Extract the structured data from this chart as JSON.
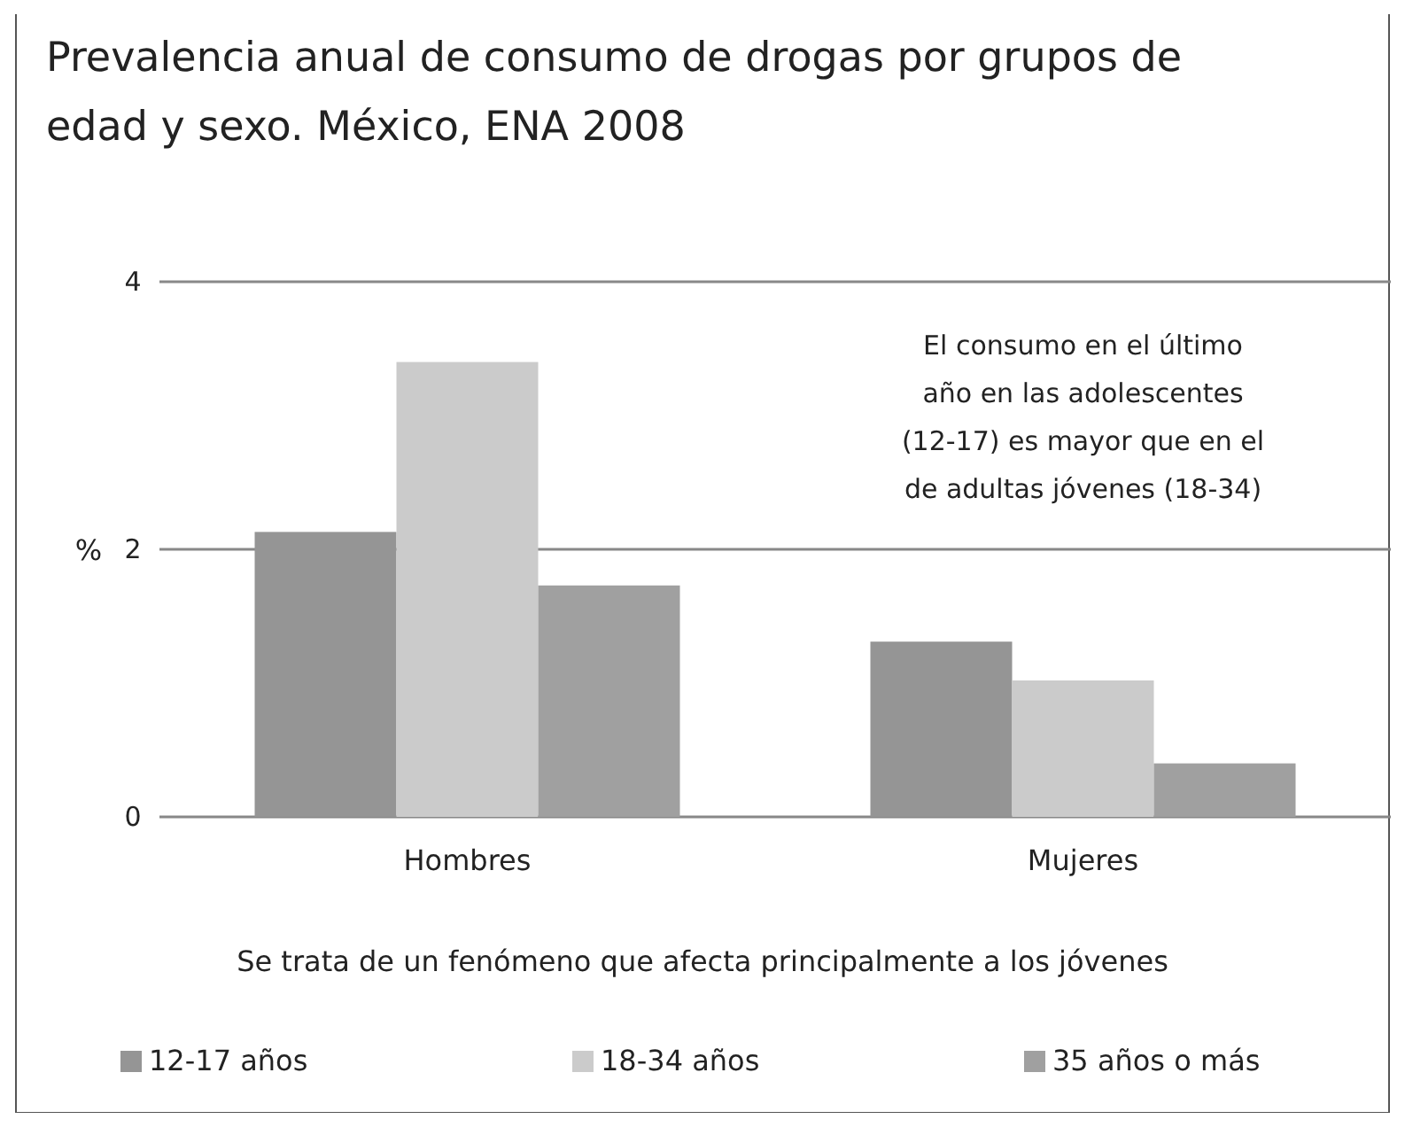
{
  "chart_data": {
    "type": "bar",
    "title": "Prevalencia anual de consumo de drogas por grupos de edad y sexo. México, ENA 2008",
    "ylabel": "%",
    "categories": [
      "Hombres",
      "Mujeres"
    ],
    "series": [
      {
        "name": "12-17 años",
        "color": "#959595",
        "values": [
          2.13,
          1.31
        ]
      },
      {
        "name": "18-34 años",
        "color": "#cbcbcb",
        "values": [
          3.4,
          1.02
        ]
      },
      {
        "name": "35 años o más",
        "color": "#a0a0a0",
        "values": [
          1.73,
          0.4
        ]
      }
    ],
    "ylim": [
      0,
      4
    ],
    "yticks": [
      0,
      2,
      4
    ],
    "grid": "y",
    "legend": "bottom",
    "annotations": [
      "El consumo en el último año en las adolescentes (12-17) es mayor que en el de adultas jóvenes (18-34)",
      "Se trata de un fenómeno que afecta principalmente a los jóvenes"
    ]
  }
}
